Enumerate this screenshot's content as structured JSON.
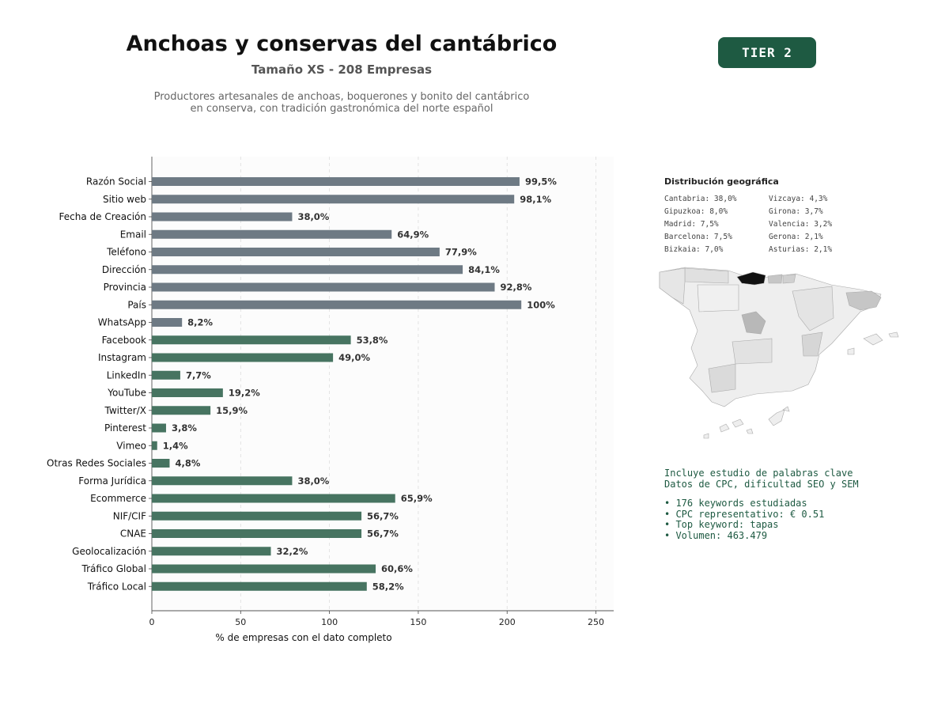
{
  "header": {
    "title": "Anchoas y conservas del cantábrico",
    "subtitle": "Tamaño XS - 208 Empresas",
    "description_lines": [
      "Productores artesanales de anchoas, boquerones y bonito del cantábrico",
      "en conserva, con tradición gastronómica del norte español"
    ],
    "tier_label": "TIER 2"
  },
  "colors": {
    "basic_bar": "#6e7a84",
    "social_bar": "#477461",
    "tier_bg": "#1e5a42",
    "keyword_text": "#1e5a42"
  },
  "chart_data": {
    "type": "bar",
    "orientation": "horizontal",
    "categories": [
      "Razón Social",
      "Sitio web",
      "Fecha de Creación",
      "Email",
      "Teléfono",
      "Dirección",
      "Provincia",
      "País",
      "WhatsApp",
      "Facebook",
      "Instagram",
      "LinkedIn",
      "YouTube",
      "Twitter/X",
      "Pinterest",
      "Vimeo",
      "Otras Redes Sociales",
      "Forma Jurídica",
      "Ecommerce",
      "NIF/CIF",
      "CNAE",
      "Geolocalización",
      "Tráfico Global",
      "Tráfico Local"
    ],
    "values": [
      207,
      204,
      79,
      135,
      162,
      175,
      193,
      208,
      17,
      112,
      102,
      16,
      40,
      33,
      8,
      3,
      10,
      79,
      137,
      118,
      118,
      67,
      126,
      121
    ],
    "data_labels": [
      "99,5%",
      "98,1%",
      "38,0%",
      "64,9%",
      "77,9%",
      "84,1%",
      "92,8%",
      "100%",
      "8,2%",
      "53,8%",
      "49,0%",
      "7,7%",
      "19,2%",
      "15,9%",
      "3,8%",
      "1,4%",
      "4,8%",
      "38,0%",
      "65,9%",
      "56,7%",
      "56,7%",
      "32,2%",
      "60,6%",
      "58,2%"
    ],
    "bar_group": [
      "basic",
      "basic",
      "basic",
      "basic",
      "basic",
      "basic",
      "basic",
      "basic",
      "basic",
      "social",
      "social",
      "social",
      "social",
      "social",
      "social",
      "social",
      "social",
      "social",
      "social",
      "social",
      "social",
      "social",
      "social",
      "social"
    ],
    "xlabel": "% de empresas con el dato completo",
    "xlim": [
      0,
      260
    ],
    "xticks": [
      0,
      50,
      100,
      150,
      200,
      250
    ],
    "grid": "vertical dashed"
  },
  "geo": {
    "title": "Distribución geográfica",
    "items": [
      "Cantabria: 38,0%",
      "Gipuzkoa: 8,0%",
      "Madrid: 7,5%",
      "Barcelona: 7,5%",
      "Bizkaia: 7,0%",
      "Vizcaya: 4,3%",
      "Girona: 3,7%",
      "Valencia: 3,2%",
      "Gerona: 2,1%",
      "Asturias: 2,1%"
    ]
  },
  "keywords": {
    "heading_lines": [
      "Incluye estudio de palabras clave",
      "Datos de CPC, dificultad SEO y SEM"
    ],
    "bullets": [
      "• 176 keywords estudiadas",
      "• CPC representativo: € 0.51",
      "• Top keyword: tapas",
      "• Volumen: 463.479"
    ]
  }
}
